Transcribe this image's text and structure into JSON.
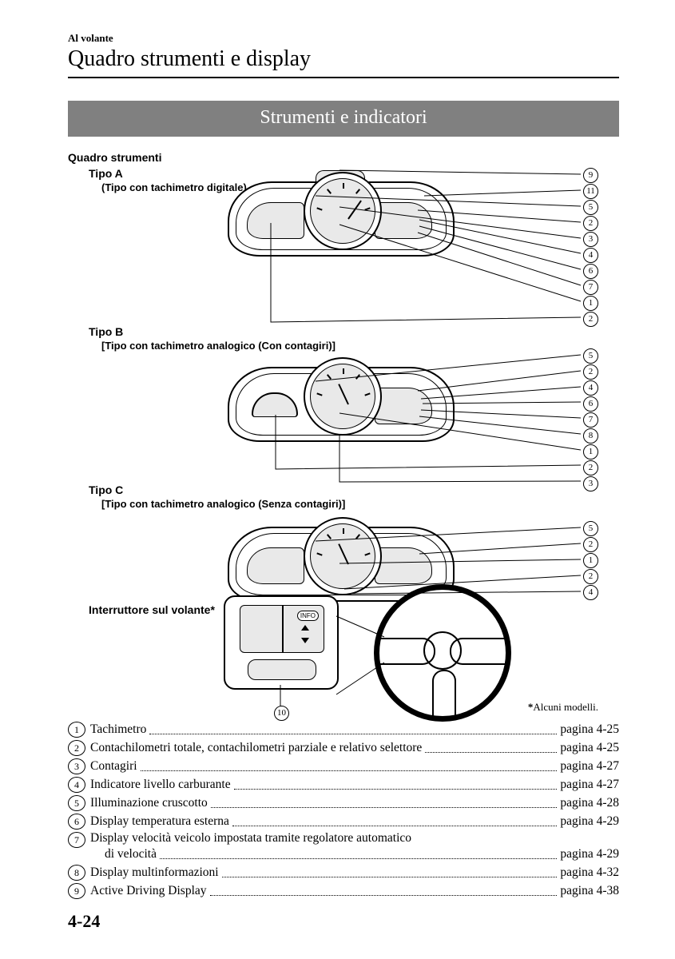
{
  "header": {
    "prechapter": "Al volante",
    "chapter": "Quadro strumenti e display"
  },
  "section": {
    "title": "Strumenti e indicatori"
  },
  "diagram": {
    "label_cluster": "Quadro strumenti",
    "types": {
      "a": {
        "title": "Tipo A",
        "subtitle": "(Tipo con tachimetro digitale)"
      },
      "b": {
        "title": "Tipo B",
        "subtitle": "[Tipo con tachimetro analogico (Con contagiri)]"
      },
      "c": {
        "title": "Tipo C",
        "subtitle": "[Tipo con tachimetro analogico (Senza contagiri)]"
      }
    },
    "steering_switch": "Interruttore sul volante",
    "info_label": "INFO",
    "callouts_a": [
      "9",
      "11",
      "5",
      "2",
      "3",
      "4",
      "6",
      "7",
      "1",
      "2"
    ],
    "callouts_b": [
      "5",
      "2",
      "4",
      "6",
      "7",
      "8",
      "1",
      "2",
      "3"
    ],
    "callouts_c": [
      "5",
      "2",
      "1",
      "2",
      "4"
    ],
    "wheel_callout": "10",
    "footnote": "Alcuni modelli.",
    "star": "*"
  },
  "index": [
    {
      "n": "1",
      "label": "Tachimetro",
      "page": "pagina 4-25"
    },
    {
      "n": "2",
      "label": "Contachilometri totale, contachilometri parziale e relativo selettore",
      "page": "pagina 4-25"
    },
    {
      "n": "3",
      "label": "Contagiri",
      "page": "pagina 4-27"
    },
    {
      "n": "4",
      "label": "Indicatore livello carburante",
      "page": "pagina 4-27"
    },
    {
      "n": "5",
      "label": "Illuminazione cruscotto",
      "page": "pagina 4-28"
    },
    {
      "n": "6",
      "label": "Display temperatura esterna",
      "page": "pagina 4-29"
    },
    {
      "n": "7",
      "label": "Display velocità veicolo impostata tramite regolatore automatico",
      "label2": "di velocità",
      "page": "pagina 4-29"
    },
    {
      "n": "8",
      "label": "Display multinformazioni",
      "page": "pagina 4-32"
    },
    {
      "n": "9",
      "label": "Active Driving Display",
      "page": "pagina 4-38"
    }
  ],
  "page_number": "4-24",
  "colors": {
    "band_bg": "#808080",
    "shade": "#e9e9e9",
    "text": "#000000",
    "bg": "#ffffff"
  }
}
